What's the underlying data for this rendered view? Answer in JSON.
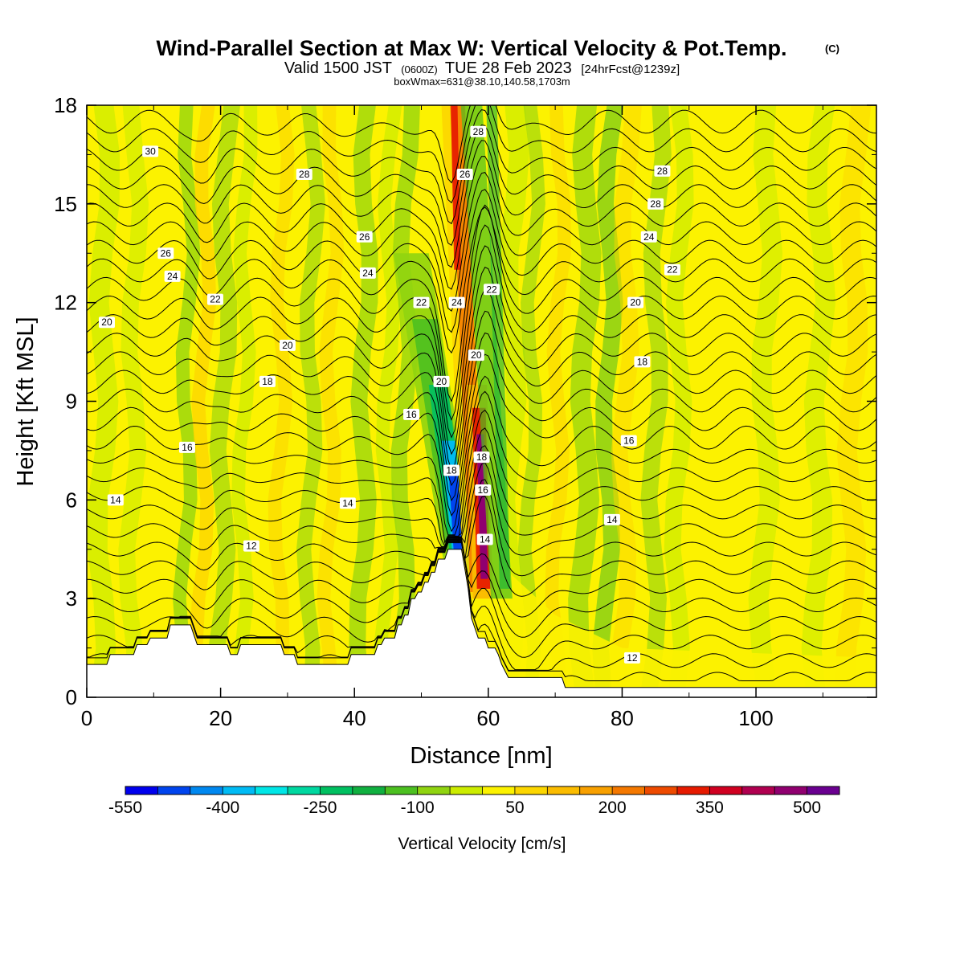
{
  "title": {
    "main": "Wind-Parallel Section at Max W: Vertical Velocity & Pot.Temp.",
    "copyright": "(C)",
    "valid_prefix": "Valid 1500 JST",
    "valid_z": "(0600Z)",
    "valid_date": "TUE 28 Feb 2023",
    "valid_fcst": "[24hrFcst@1239z]",
    "boxinfo": "boxWmax=631@38.10,140.58,1703m"
  },
  "chart_data": {
    "type": "heatmap",
    "xlabel": "Distance [nm]",
    "ylabel": "Height [Kft MSL]",
    "xlim": [
      0,
      118
    ],
    "ylim": [
      0,
      18
    ],
    "x_ticks": [
      0,
      20,
      40,
      60,
      80,
      100
    ],
    "y_ticks": [
      0,
      3,
      6,
      9,
      12,
      15,
      18
    ],
    "grid": false,
    "colorbar": {
      "title": "Vertical Velocity [cm/s]",
      "bounds": [
        -550,
        -500,
        -450,
        -400,
        -350,
        -300,
        -250,
        -200,
        -150,
        -100,
        -50,
        0,
        50,
        100,
        150,
        200,
        250,
        300,
        350,
        400,
        450,
        500,
        550
      ],
      "tick_labels": [
        "-550",
        "-400",
        "-250",
        "-100",
        "50",
        "200",
        "350",
        "500"
      ],
      "colors": [
        "#0000ee",
        "#0044ee",
        "#0088f0",
        "#00bbf5",
        "#00e6e6",
        "#00d8a0",
        "#00c060",
        "#10b040",
        "#4cc020",
        "#90d410",
        "#ccec00",
        "#fcf200",
        "#fcd600",
        "#fbbc00",
        "#f8a000",
        "#f47800",
        "#ee4a00",
        "#e61a00",
        "#d00020",
        "#b00050",
        "#900070",
        "#6a0090"
      ]
    },
    "terrain_kft": [
      [
        0,
        1.0
      ],
      [
        3,
        1.0
      ],
      [
        3.5,
        1.3
      ],
      [
        7,
        1.3
      ],
      [
        7.5,
        1.6
      ],
      [
        9,
        1.6
      ],
      [
        9.5,
        1.8
      ],
      [
        12,
        1.8
      ],
      [
        12.5,
        2.2
      ],
      [
        15.5,
        2.2
      ],
      [
        16,
        1.9
      ],
      [
        16.5,
        1.6
      ],
      [
        21,
        1.6
      ],
      [
        21.5,
        1.3
      ],
      [
        22.5,
        1.3
      ],
      [
        23,
        1.6
      ],
      [
        29,
        1.6
      ],
      [
        29.5,
        1.3
      ],
      [
        31,
        1.3
      ],
      [
        31.5,
        1.0
      ],
      [
        39,
        1.0
      ],
      [
        39.5,
        1.3
      ],
      [
        43,
        1.3
      ],
      [
        43.5,
        1.6
      ],
      [
        44,
        1.6
      ],
      [
        44.5,
        1.8
      ],
      [
        46,
        1.8
      ],
      [
        46.5,
        2.2
      ],
      [
        47,
        2.2
      ],
      [
        47.5,
        2.5
      ],
      [
        48,
        2.5
      ],
      [
        48.5,
        3.0
      ],
      [
        49,
        3.0
      ],
      [
        49.5,
        3.2
      ],
      [
        50,
        3.2
      ],
      [
        50.5,
        3.5
      ],
      [
        51,
        3.5
      ],
      [
        51.5,
        3.8
      ],
      [
        52,
        3.8
      ],
      [
        52.5,
        4.2
      ],
      [
        53.5,
        4.2
      ],
      [
        54,
        4.5
      ],
      [
        56,
        4.5
      ],
      [
        56.5,
        3.9
      ],
      [
        57,
        3.3
      ],
      [
        57.5,
        2.4
      ],
      [
        58,
        2.1
      ],
      [
        58.5,
        1.8
      ],
      [
        59.5,
        1.8
      ],
      [
        60,
        1.5
      ],
      [
        61,
        1.5
      ],
      [
        61.5,
        1.3
      ],
      [
        62,
        1.0
      ],
      [
        63,
        0.6
      ],
      [
        71,
        0.6
      ],
      [
        71.5,
        0.3
      ],
      [
        118,
        0.3
      ]
    ],
    "isentrope_labels": [
      {
        "text": "30",
        "x": 9.5,
        "y": 16.6
      },
      {
        "text": "28",
        "x": 32.5,
        "y": 15.9
      },
      {
        "text": "26",
        "x": 41.5,
        "y": 14.0
      },
      {
        "text": "26",
        "x": 11.8,
        "y": 13.5
      },
      {
        "text": "24",
        "x": 12.8,
        "y": 12.8
      },
      {
        "text": "24",
        "x": 42,
        "y": 12.9
      },
      {
        "text": "22",
        "x": 19.2,
        "y": 12.1
      },
      {
        "text": "20",
        "x": 3,
        "y": 11.4
      },
      {
        "text": "20",
        "x": 30,
        "y": 10.7
      },
      {
        "text": "18",
        "x": 27,
        "y": 9.6
      },
      {
        "text": "16",
        "x": 48.5,
        "y": 8.6
      },
      {
        "text": "16",
        "x": 15,
        "y": 7.6
      },
      {
        "text": "14",
        "x": 4.3,
        "y": 6.0
      },
      {
        "text": "14",
        "x": 39,
        "y": 5.9
      },
      {
        "text": "12",
        "x": 24.6,
        "y": 4.6
      },
      {
        "text": "28",
        "x": 58.5,
        "y": 17.2
      },
      {
        "text": "26",
        "x": 56.5,
        "y": 15.9
      },
      {
        "text": "22",
        "x": 50,
        "y": 12.0
      },
      {
        "text": "24",
        "x": 55.3,
        "y": 12.0
      },
      {
        "text": "22",
        "x": 60.5,
        "y": 12.4
      },
      {
        "text": "20",
        "x": 53,
        "y": 9.6
      },
      {
        "text": "20",
        "x": 58.2,
        "y": 10.4
      },
      {
        "text": "18",
        "x": 54.5,
        "y": 6.9
      },
      {
        "text": "18",
        "x": 59,
        "y": 7.3
      },
      {
        "text": "16",
        "x": 59.2,
        "y": 6.3
      },
      {
        "text": "14",
        "x": 59.5,
        "y": 4.8
      },
      {
        "text": "28",
        "x": 86,
        "y": 16.0
      },
      {
        "text": "28",
        "x": 85,
        "y": 15.0
      },
      {
        "text": "24",
        "x": 84,
        "y": 14.0
      },
      {
        "text": "22",
        "x": 87.5,
        "y": 13.0
      },
      {
        "text": "20",
        "x": 82,
        "y": 12.0
      },
      {
        "text": "18",
        "x": 83,
        "y": 10.2
      },
      {
        "text": "16",
        "x": 81,
        "y": 7.8
      },
      {
        "text": "14",
        "x": 78.5,
        "y": 5.4
      },
      {
        "text": "12",
        "x": 81.5,
        "y": 1.2
      }
    ]
  }
}
